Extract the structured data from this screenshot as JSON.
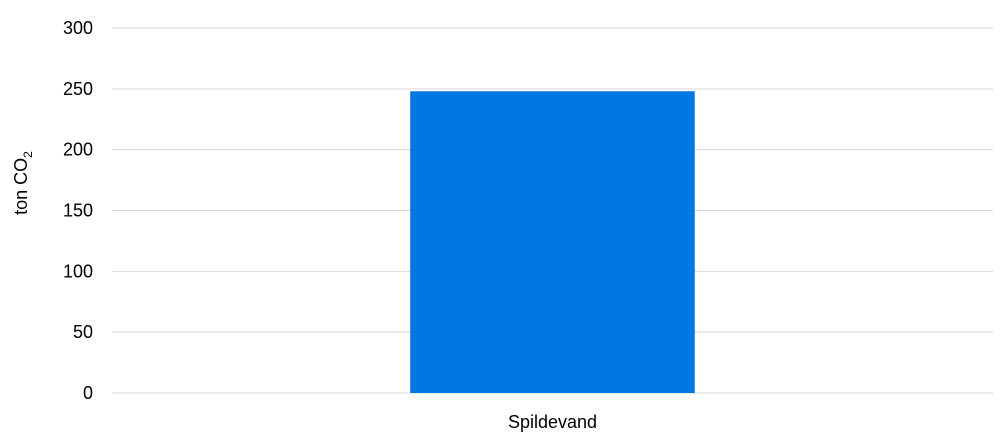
{
  "chart_data": {
    "type": "bar",
    "categories": [
      "Spildevand"
    ],
    "series": [
      {
        "values": [
          248
        ]
      }
    ],
    "title": "",
    "xlabel": "",
    "ylabel": "ton CO",
    "ylabel_subscript": "2",
    "ylim": [
      0,
      300
    ],
    "yticks": [
      0,
      50,
      100,
      150,
      200,
      250,
      300
    ],
    "ytick_labels": [
      "0",
      "50",
      "100",
      "150",
      "200",
      "250",
      "300"
    ],
    "grid": true,
    "legend": "none",
    "bar_color": "#0078E1",
    "grid_color": "#D9D9D9"
  }
}
